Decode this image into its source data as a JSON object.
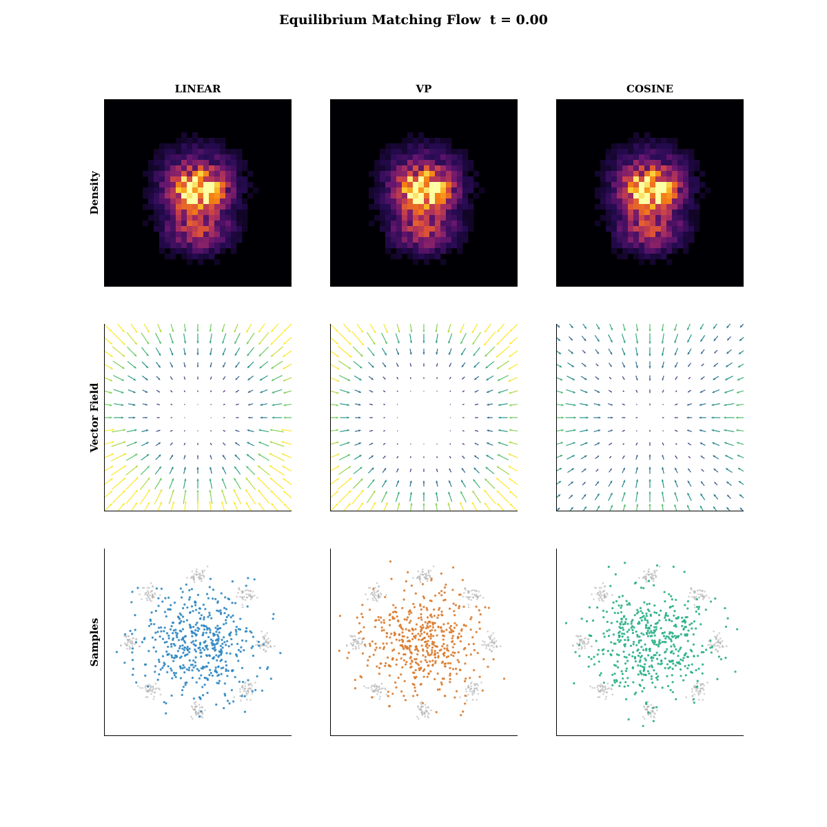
{
  "title": "Equilibrium Matching Flow  t = 0.00",
  "columns": [
    {
      "key": "linear",
      "label": "LINEAR",
      "sample_color": "#2e86c1"
    },
    {
      "key": "vp",
      "label": "VP",
      "sample_color": "#d97a2b"
    },
    {
      "key": "cosine",
      "label": "COSINE",
      "sample_color": "#27ae85"
    }
  ],
  "rows": [
    {
      "key": "density",
      "label": "Density"
    },
    {
      "key": "vector",
      "label": "Vector Field"
    },
    {
      "key": "samples",
      "label": "Samples"
    }
  ],
  "chart_data": [
    {
      "type": "heatmap",
      "row": "Density",
      "colormap": "inferno",
      "description_of_values": "2D histogram of flow samples; same field for all three schedules",
      "xlim": [
        -1,
        1
      ],
      "ylim": [
        -1,
        1
      ],
      "peak": {
        "x": 0.0,
        "y": 0.05
      },
      "grid": false
    },
    {
      "type": "quiver",
      "row": "Vector Field",
      "colormap": "viridis",
      "grid_size": 15,
      "xlim": [
        -1,
        1
      ],
      "ylim": [
        -1,
        1
      ],
      "schedules": [
        "linear",
        "vp",
        "cosine"
      ]
    },
    {
      "type": "scatter",
      "row": "Samples",
      "target_modes": {
        "count": 8,
        "radius": 0.72,
        "color": "#aaaaaa"
      },
      "samples_per_panel": 500,
      "sample_spread": 0.42,
      "xlim": [
        -1,
        1
      ],
      "ylim": [
        -1,
        1
      ]
    }
  ]
}
